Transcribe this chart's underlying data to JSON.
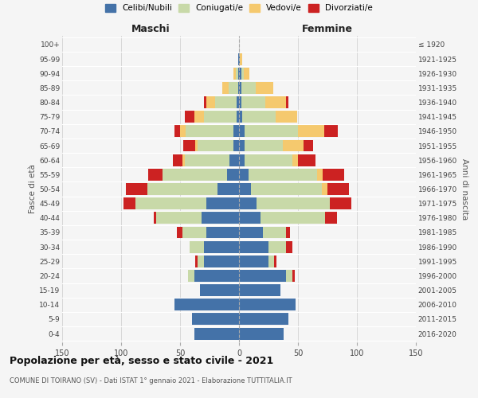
{
  "age_groups": [
    "0-4",
    "5-9",
    "10-14",
    "15-19",
    "20-24",
    "25-29",
    "30-34",
    "35-39",
    "40-44",
    "45-49",
    "50-54",
    "55-59",
    "60-64",
    "65-69",
    "70-74",
    "75-79",
    "80-84",
    "85-89",
    "90-94",
    "95-99",
    "100+"
  ],
  "birth_years": [
    "2016-2020",
    "2011-2015",
    "2006-2010",
    "2001-2005",
    "1996-2000",
    "1991-1995",
    "1986-1990",
    "1981-1985",
    "1976-1980",
    "1971-1975",
    "1966-1970",
    "1961-1965",
    "1956-1960",
    "1951-1955",
    "1946-1950",
    "1941-1945",
    "1936-1940",
    "1931-1935",
    "1926-1930",
    "1921-1925",
    "≤ 1920"
  ],
  "males": {
    "celibe": [
      38,
      40,
      55,
      33,
      38,
      30,
      30,
      28,
      32,
      28,
      18,
      10,
      8,
      5,
      5,
      2,
      2,
      1,
      1,
      1,
      0
    ],
    "coniugato": [
      0,
      0,
      0,
      0,
      5,
      5,
      12,
      20,
      38,
      60,
      60,
      55,
      38,
      30,
      40,
      28,
      18,
      8,
      2,
      0,
      0
    ],
    "vedovo": [
      0,
      0,
      0,
      0,
      0,
      0,
      0,
      0,
      0,
      0,
      0,
      0,
      2,
      2,
      5,
      8,
      8,
      5,
      2,
      0,
      0
    ],
    "divorziato": [
      0,
      0,
      0,
      0,
      0,
      2,
      0,
      5,
      2,
      10,
      18,
      12,
      8,
      10,
      5,
      8,
      2,
      0,
      0,
      0,
      0
    ]
  },
  "females": {
    "nubile": [
      38,
      42,
      48,
      35,
      40,
      25,
      25,
      20,
      18,
      15,
      10,
      8,
      5,
      5,
      5,
      3,
      2,
      2,
      2,
      1,
      0
    ],
    "coniugata": [
      0,
      0,
      0,
      0,
      5,
      5,
      15,
      20,
      55,
      62,
      60,
      58,
      40,
      32,
      45,
      28,
      20,
      12,
      2,
      0,
      0
    ],
    "vedova": [
      0,
      0,
      0,
      0,
      0,
      0,
      0,
      0,
      0,
      0,
      5,
      5,
      5,
      18,
      22,
      18,
      18,
      15,
      5,
      2,
      0
    ],
    "divorziata": [
      0,
      0,
      0,
      0,
      2,
      2,
      5,
      3,
      10,
      18,
      18,
      18,
      15,
      8,
      12,
      0,
      2,
      0,
      0,
      0,
      0
    ]
  },
  "colors": {
    "celibe": "#4472a8",
    "coniugato": "#c8d9a8",
    "vedovo": "#f5c96e",
    "divorziato": "#cc2222"
  },
  "xlim": 150,
  "title": "Popolazione per età, sesso e stato civile - 2021",
  "subtitle": "COMUNE DI TOIRANO (SV) - Dati ISTAT 1° gennaio 2021 - Elaborazione TUTTITALIA.IT",
  "legend_labels": [
    "Celibi/Nubili",
    "Coniugati/e",
    "Vedovi/e",
    "Divorziati/e"
  ],
  "xlabel_left": "Maschi",
  "xlabel_right": "Femmine",
  "ylabel_left": "Fasce di età",
  "ylabel_right": "Anni di nascita",
  "background_color": "#f5f5f5"
}
